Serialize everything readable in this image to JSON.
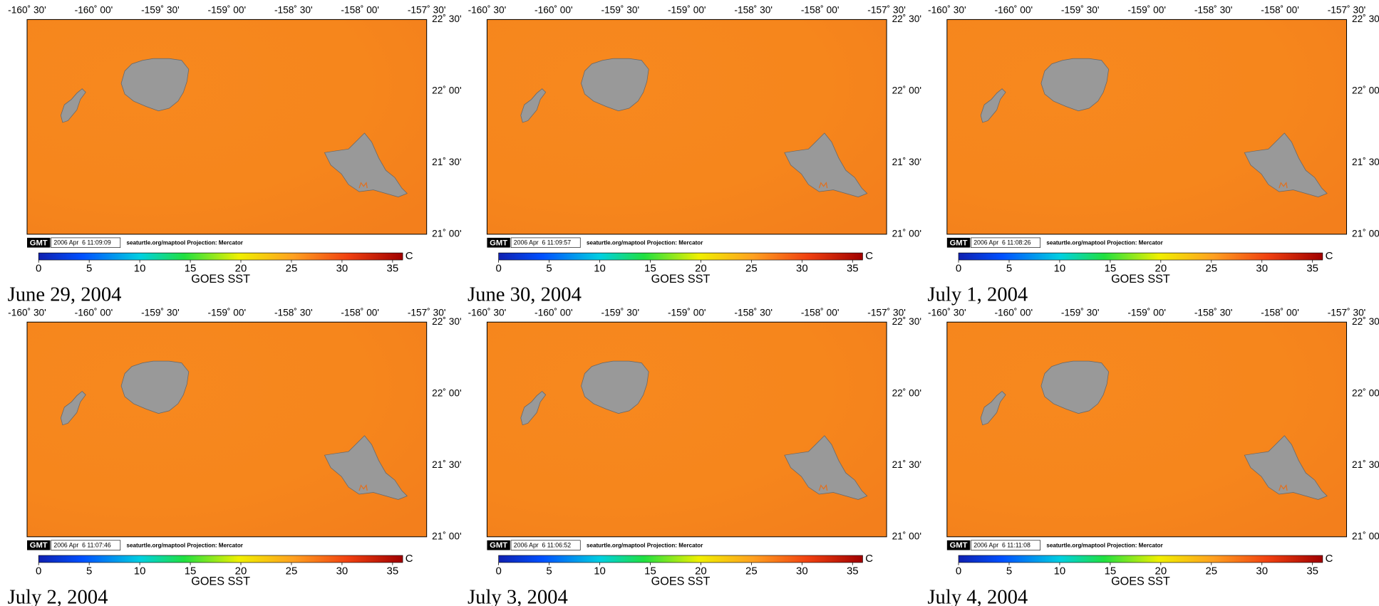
{
  "lon_ticks": [
    "-160˚ 30'",
    "-160˚ 00'",
    "-159˚ 30'",
    "-159˚ 00'",
    "-158˚ 30'",
    "-158˚ 00'",
    "-157˚ 30'"
  ],
  "lat_ticks": [
    "22˚ 30'",
    "22˚ 00'",
    "21˚ 30'",
    "21˚ 00'"
  ],
  "logo": "GMT",
  "credit": "seaturtle.org/maptool Projection: Mercator",
  "colorbar": {
    "ticks": [
      0,
      5,
      10,
      15,
      20,
      25,
      30,
      35
    ],
    "range": [
      0,
      36
    ],
    "unit": "C",
    "label": "GOES SST"
  },
  "panels": [
    {
      "date": "June 29, 2004",
      "timestamp": "2006 Apr  6 11:09:09"
    },
    {
      "date": "June 30, 2004",
      "timestamp": "2006 Apr  6 11:09:57"
    },
    {
      "date": "July 1, 2004",
      "timestamp": "2006 Apr  6 11:08:26"
    },
    {
      "date": "July 2, 2004",
      "timestamp": "2006 Apr  6 11:07:46"
    },
    {
      "date": "July 3, 2004",
      "timestamp": "2006 Apr  6 11:06:52"
    },
    {
      "date": "July 4, 2004",
      "timestamp": "2006 Apr  6 11:11:08"
    }
  ]
}
